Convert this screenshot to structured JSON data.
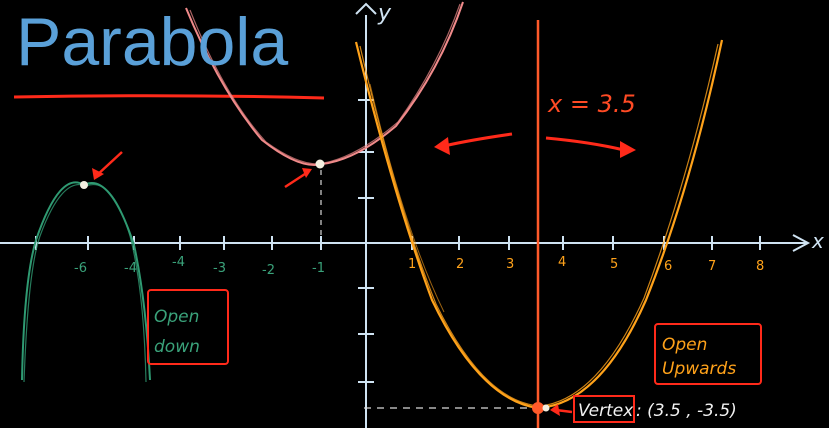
{
  "title": "Parabola",
  "colors": {
    "background": "#000000",
    "axis": "#cfe3f2",
    "title": "#5aa0d8",
    "red": "#ff2a1a",
    "orange_curve": "#ffa21a",
    "pink_curve": "#f08a8a",
    "green_curve": "#2f9a72",
    "symmetry_line": "#ff5a2a"
  },
  "axes": {
    "x_label": "x",
    "y_label": "y",
    "x_ticks_positive": [
      "1",
      "2",
      "3",
      "4",
      "5",
      "6",
      "7",
      "8"
    ],
    "x_ticks_negative": [
      "-1",
      "-2",
      "-3",
      "-4",
      "-6"
    ]
  },
  "annotations": {
    "axis_of_symmetry": "x = 3.5",
    "upward_box_line1": "Open",
    "upward_box_line2": "Upwards",
    "downward_box_line1": "Open",
    "downward_box_line2": "down",
    "vertex_label": "Vertex",
    "vertex_coords": ": (3.5 , -3.5)",
    "left_tick_a": "-6",
    "left_tick_b": "-4"
  }
}
